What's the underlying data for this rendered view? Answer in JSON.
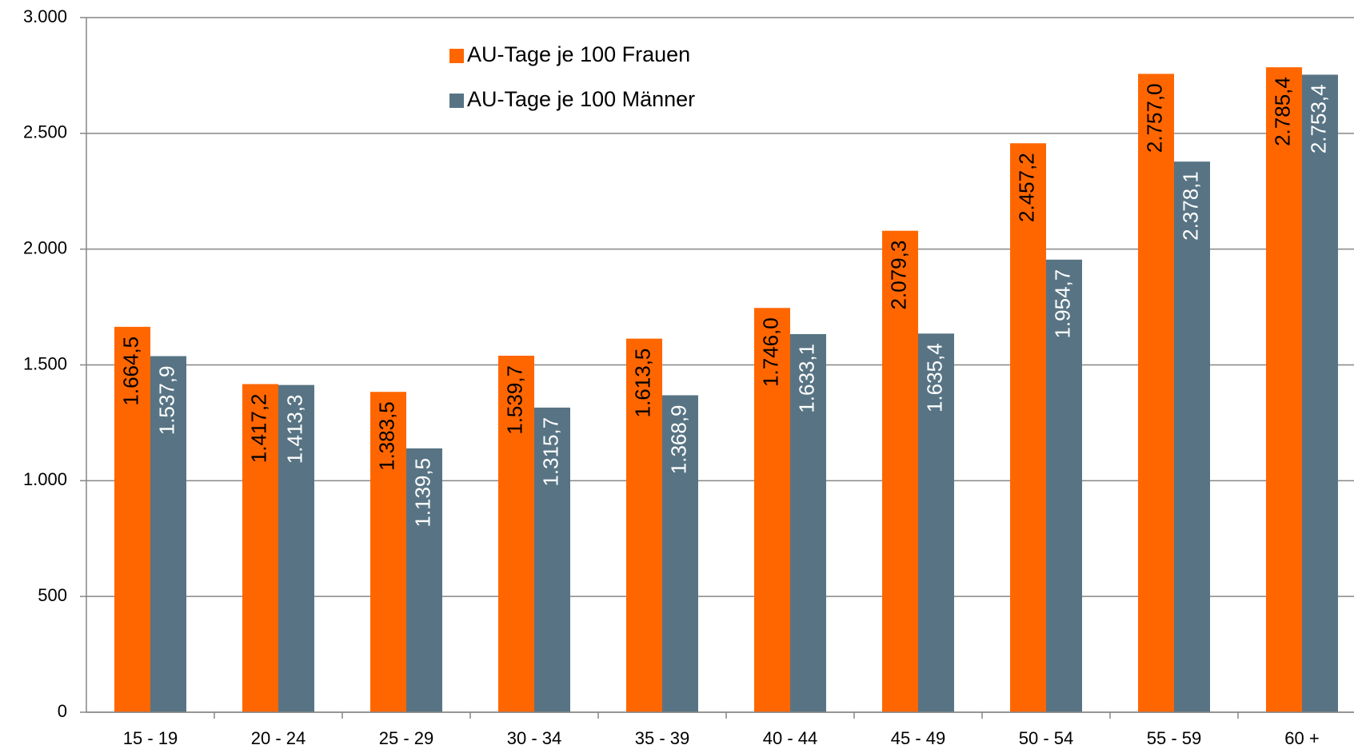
{
  "chart_data": {
    "type": "bar",
    "categories": [
      "15 - 19",
      "20 - 24",
      "25 - 29",
      "30 - 34",
      "35 - 39",
      "40 - 44",
      "45 - 49",
      "50 - 54",
      "55 - 59",
      "60 +"
    ],
    "series": [
      {
        "name": "AU-Tage je 100 Frauen",
        "color": "#ff6600",
        "values": [
          1664.5,
          1417.2,
          1383.5,
          1539.7,
          1613.5,
          1746.0,
          2079.3,
          2457.2,
          2757.0,
          2785.4
        ],
        "value_labels": [
          "1.664,5",
          "1.417,2",
          "1.383,5",
          "1.539,7",
          "1.613,5",
          "1.746,0",
          "2.079,3",
          "2.457,2",
          "2.757,0",
          "2.785,4"
        ]
      },
      {
        "name": "AU-Tage je 100 Männer",
        "color": "#587484",
        "values": [
          1537.9,
          1413.3,
          1139.5,
          1315.7,
          1368.9,
          1633.1,
          1635.4,
          1954.7,
          2378.1,
          2753.4
        ],
        "value_labels": [
          "1.537,9",
          "1.413,3",
          "1.139,5",
          "1.315,7",
          "1.368,9",
          "1.633,1",
          "1.635,4",
          "1.954,7",
          "2.378,1",
          "2.753,4"
        ]
      }
    ],
    "ylim": [
      0,
      3000
    ],
    "yticks": [
      0,
      500,
      {
        "value": 1000,
        "label": "1.000"
      },
      {
        "value": 1500,
        "label": "1.500"
      },
      {
        "value": 2000,
        "label": "2.000"
      },
      {
        "value": 2500,
        "label": "2.500"
      },
      {
        "value": 3000,
        "label": "3.000"
      }
    ],
    "grid": true
  }
}
